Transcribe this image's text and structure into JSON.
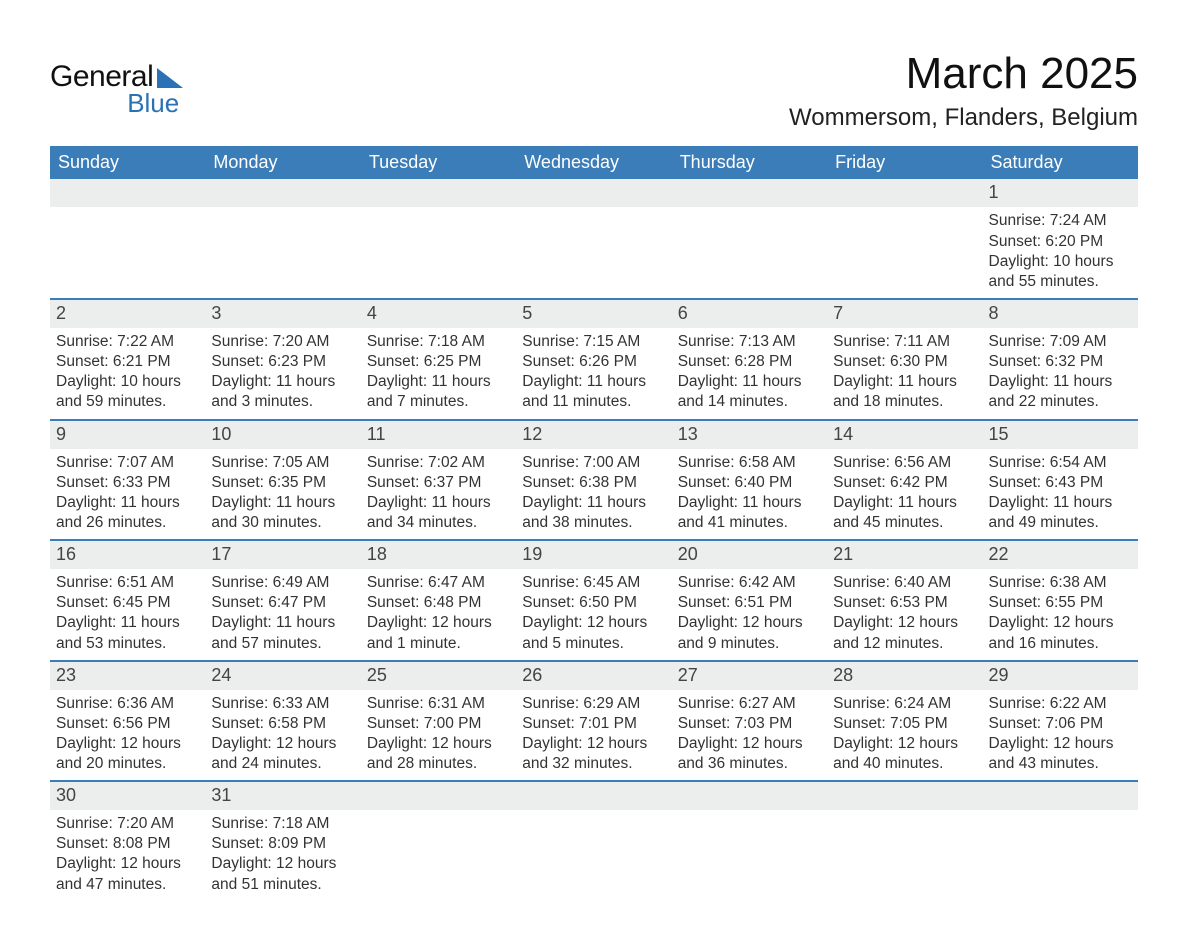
{
  "logo": {
    "word1": "General",
    "word2": "Blue"
  },
  "title": "March 2025",
  "subtitle": "Wommersom, Flanders, Belgium",
  "colors": {
    "header_bg": "#3a7db8",
    "header_text": "#ffffff",
    "row_divider": "#3a7db8",
    "daynum_bg": "#eceded",
    "logo_blue": "#2a71b6"
  },
  "weekdays": [
    "Sunday",
    "Monday",
    "Tuesday",
    "Wednesday",
    "Thursday",
    "Friday",
    "Saturday"
  ],
  "weeks": [
    [
      {
        "empty": true
      },
      {
        "empty": true
      },
      {
        "empty": true
      },
      {
        "empty": true
      },
      {
        "empty": true
      },
      {
        "empty": true
      },
      {
        "num": "1",
        "sunrise": "Sunrise: 7:24 AM",
        "sunset": "Sunset: 6:20 PM",
        "day1": "Daylight: 10 hours",
        "day2": "and 55 minutes."
      }
    ],
    [
      {
        "num": "2",
        "sunrise": "Sunrise: 7:22 AM",
        "sunset": "Sunset: 6:21 PM",
        "day1": "Daylight: 10 hours",
        "day2": "and 59 minutes."
      },
      {
        "num": "3",
        "sunrise": "Sunrise: 7:20 AM",
        "sunset": "Sunset: 6:23 PM",
        "day1": "Daylight: 11 hours",
        "day2": "and 3 minutes."
      },
      {
        "num": "4",
        "sunrise": "Sunrise: 7:18 AM",
        "sunset": "Sunset: 6:25 PM",
        "day1": "Daylight: 11 hours",
        "day2": "and 7 minutes."
      },
      {
        "num": "5",
        "sunrise": "Sunrise: 7:15 AM",
        "sunset": "Sunset: 6:26 PM",
        "day1": "Daylight: 11 hours",
        "day2": "and 11 minutes."
      },
      {
        "num": "6",
        "sunrise": "Sunrise: 7:13 AM",
        "sunset": "Sunset: 6:28 PM",
        "day1": "Daylight: 11 hours",
        "day2": "and 14 minutes."
      },
      {
        "num": "7",
        "sunrise": "Sunrise: 7:11 AM",
        "sunset": "Sunset: 6:30 PM",
        "day1": "Daylight: 11 hours",
        "day2": "and 18 minutes."
      },
      {
        "num": "8",
        "sunrise": "Sunrise: 7:09 AM",
        "sunset": "Sunset: 6:32 PM",
        "day1": "Daylight: 11 hours",
        "day2": "and 22 minutes."
      }
    ],
    [
      {
        "num": "9",
        "sunrise": "Sunrise: 7:07 AM",
        "sunset": "Sunset: 6:33 PM",
        "day1": "Daylight: 11 hours",
        "day2": "and 26 minutes."
      },
      {
        "num": "10",
        "sunrise": "Sunrise: 7:05 AM",
        "sunset": "Sunset: 6:35 PM",
        "day1": "Daylight: 11 hours",
        "day2": "and 30 minutes."
      },
      {
        "num": "11",
        "sunrise": "Sunrise: 7:02 AM",
        "sunset": "Sunset: 6:37 PM",
        "day1": "Daylight: 11 hours",
        "day2": "and 34 minutes."
      },
      {
        "num": "12",
        "sunrise": "Sunrise: 7:00 AM",
        "sunset": "Sunset: 6:38 PM",
        "day1": "Daylight: 11 hours",
        "day2": "and 38 minutes."
      },
      {
        "num": "13",
        "sunrise": "Sunrise: 6:58 AM",
        "sunset": "Sunset: 6:40 PM",
        "day1": "Daylight: 11 hours",
        "day2": "and 41 minutes."
      },
      {
        "num": "14",
        "sunrise": "Sunrise: 6:56 AM",
        "sunset": "Sunset: 6:42 PM",
        "day1": "Daylight: 11 hours",
        "day2": "and 45 minutes."
      },
      {
        "num": "15",
        "sunrise": "Sunrise: 6:54 AM",
        "sunset": "Sunset: 6:43 PM",
        "day1": "Daylight: 11 hours",
        "day2": "and 49 minutes."
      }
    ],
    [
      {
        "num": "16",
        "sunrise": "Sunrise: 6:51 AM",
        "sunset": "Sunset: 6:45 PM",
        "day1": "Daylight: 11 hours",
        "day2": "and 53 minutes."
      },
      {
        "num": "17",
        "sunrise": "Sunrise: 6:49 AM",
        "sunset": "Sunset: 6:47 PM",
        "day1": "Daylight: 11 hours",
        "day2": "and 57 minutes."
      },
      {
        "num": "18",
        "sunrise": "Sunrise: 6:47 AM",
        "sunset": "Sunset: 6:48 PM",
        "day1": "Daylight: 12 hours",
        "day2": "and 1 minute."
      },
      {
        "num": "19",
        "sunrise": "Sunrise: 6:45 AM",
        "sunset": "Sunset: 6:50 PM",
        "day1": "Daylight: 12 hours",
        "day2": "and 5 minutes."
      },
      {
        "num": "20",
        "sunrise": "Sunrise: 6:42 AM",
        "sunset": "Sunset: 6:51 PM",
        "day1": "Daylight: 12 hours",
        "day2": "and 9 minutes."
      },
      {
        "num": "21",
        "sunrise": "Sunrise: 6:40 AM",
        "sunset": "Sunset: 6:53 PM",
        "day1": "Daylight: 12 hours",
        "day2": "and 12 minutes."
      },
      {
        "num": "22",
        "sunrise": "Sunrise: 6:38 AM",
        "sunset": "Sunset: 6:55 PM",
        "day1": "Daylight: 12 hours",
        "day2": "and 16 minutes."
      }
    ],
    [
      {
        "num": "23",
        "sunrise": "Sunrise: 6:36 AM",
        "sunset": "Sunset: 6:56 PM",
        "day1": "Daylight: 12 hours",
        "day2": "and 20 minutes."
      },
      {
        "num": "24",
        "sunrise": "Sunrise: 6:33 AM",
        "sunset": "Sunset: 6:58 PM",
        "day1": "Daylight: 12 hours",
        "day2": "and 24 minutes."
      },
      {
        "num": "25",
        "sunrise": "Sunrise: 6:31 AM",
        "sunset": "Sunset: 7:00 PM",
        "day1": "Daylight: 12 hours",
        "day2": "and 28 minutes."
      },
      {
        "num": "26",
        "sunrise": "Sunrise: 6:29 AM",
        "sunset": "Sunset: 7:01 PM",
        "day1": "Daylight: 12 hours",
        "day2": "and 32 minutes."
      },
      {
        "num": "27",
        "sunrise": "Sunrise: 6:27 AM",
        "sunset": "Sunset: 7:03 PM",
        "day1": "Daylight: 12 hours",
        "day2": "and 36 minutes."
      },
      {
        "num": "28",
        "sunrise": "Sunrise: 6:24 AM",
        "sunset": "Sunset: 7:05 PM",
        "day1": "Daylight: 12 hours",
        "day2": "and 40 minutes."
      },
      {
        "num": "29",
        "sunrise": "Sunrise: 6:22 AM",
        "sunset": "Sunset: 7:06 PM",
        "day1": "Daylight: 12 hours",
        "day2": "and 43 minutes."
      }
    ],
    [
      {
        "num": "30",
        "sunrise": "Sunrise: 7:20 AM",
        "sunset": "Sunset: 8:08 PM",
        "day1": "Daylight: 12 hours",
        "day2": "and 47 minutes."
      },
      {
        "num": "31",
        "sunrise": "Sunrise: 7:18 AM",
        "sunset": "Sunset: 8:09 PM",
        "day1": "Daylight: 12 hours",
        "day2": "and 51 minutes."
      },
      {
        "empty": true
      },
      {
        "empty": true
      },
      {
        "empty": true
      },
      {
        "empty": true
      },
      {
        "empty": true
      }
    ]
  ]
}
